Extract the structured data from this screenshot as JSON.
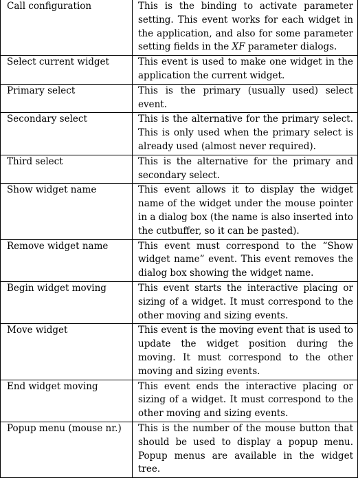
{
  "events_table": {
    "rows": [
      {
        "name": "Call configuration",
        "description_parts": [
          "This is the binding to activate parameter setting. This event works for each widget in the application, and also for some parameter setting fields in the ",
          "XF",
          " parameter dialogs."
        ]
      },
      {
        "name": "Select current widget",
        "description": "This event is used to make one widget in the application the current widget."
      },
      {
        "name": "Primary select",
        "description": "This is the primary (usually used) select event."
      },
      {
        "name": "Secondary select",
        "description": "This is the alternative for the primary select. This is only used when the primary select is already used (almost never required)."
      },
      {
        "name": "Third select",
        "description": "This is the alternative for the primary and secondary select."
      },
      {
        "name": "Show widget name",
        "description": "This event allows it to display the widget name of the widget under the mouse pointer in a dialog box (the name is also inserted into the cutbuffer, so it can be pasted)."
      },
      {
        "name": "Remove widget name",
        "description": "This event must correspond to the “Show widget name” event. This event removes the dialog box showing the widget name."
      },
      {
        "name": "Begin widget moving",
        "description": "This event starts the interactive placing or sizing of a widget. It must correspond to the other moving and sizing events."
      },
      {
        "name": "Move widget",
        "description": "This event is the moving event that is used to update the widget position during the moving. It must correspond to the other moving and sizing events."
      },
      {
        "name": "End widget moving",
        "description": "This event ends the interactive placing or sizing of a widget. It must correspond to the other moving and sizing events."
      },
      {
        "name": "Popup menu (mouse nr.)",
        "description": "This is the number of the mouse button that should be used to display a popup menu. Popup menus are available in the widget tree."
      }
    ]
  }
}
